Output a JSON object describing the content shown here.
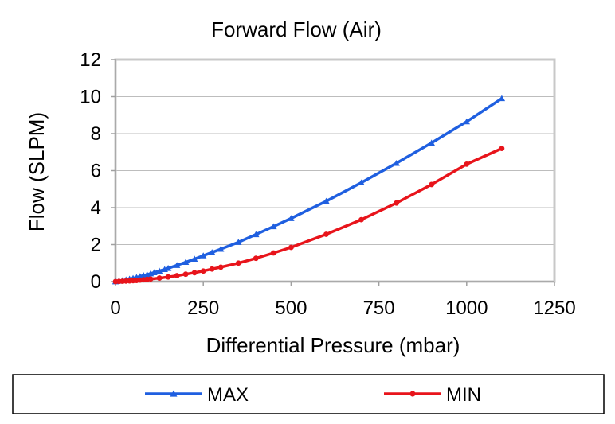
{
  "chart_data": {
    "type": "line",
    "title": "Forward Flow (Air)",
    "xlabel": "Differential Pressure (mbar)",
    "ylabel": "Flow (SLPM)",
    "xlim": [
      0,
      1250
    ],
    "ylim": [
      0,
      12
    ],
    "xticks": [
      0,
      250,
      500,
      750,
      1000,
      1250
    ],
    "yticks": [
      0,
      2,
      4,
      6,
      8,
      10,
      12
    ],
    "grid": true,
    "legend_position": "bottom",
    "series": [
      {
        "name": "MAX",
        "color": "#1F5FE0",
        "marker": "triangle",
        "points": [
          [
            0,
            0.0
          ],
          [
            10,
            0.03
          ],
          [
            20,
            0.06
          ],
          [
            30,
            0.1
          ],
          [
            40,
            0.14
          ],
          [
            50,
            0.18
          ],
          [
            60,
            0.23
          ],
          [
            70,
            0.28
          ],
          [
            80,
            0.33
          ],
          [
            90,
            0.38
          ],
          [
            100,
            0.43
          ],
          [
            110,
            0.49
          ],
          [
            125,
            0.57
          ],
          [
            140,
            0.66
          ],
          [
            150,
            0.72
          ],
          [
            175,
            0.88
          ],
          [
            200,
            1.05
          ],
          [
            225,
            1.22
          ],
          [
            250,
            1.4
          ],
          [
            275,
            1.58
          ],
          [
            300,
            1.76
          ],
          [
            350,
            2.13
          ],
          [
            400,
            2.55
          ],
          [
            450,
            2.98
          ],
          [
            500,
            3.42
          ],
          [
            600,
            4.35
          ],
          [
            700,
            5.35
          ],
          [
            800,
            6.4
          ],
          [
            900,
            7.5
          ],
          [
            1000,
            8.65
          ],
          [
            1100,
            9.9
          ]
        ]
      },
      {
        "name": "MIN",
        "color": "#E8141B",
        "marker": "circle",
        "points": [
          [
            0,
            0.0
          ],
          [
            10,
            0.01
          ],
          [
            20,
            0.02
          ],
          [
            30,
            0.03
          ],
          [
            40,
            0.04
          ],
          [
            50,
            0.05
          ],
          [
            60,
            0.06
          ],
          [
            70,
            0.08
          ],
          [
            80,
            0.1
          ],
          [
            90,
            0.12
          ],
          [
            100,
            0.14
          ],
          [
            125,
            0.19
          ],
          [
            150,
            0.25
          ],
          [
            175,
            0.32
          ],
          [
            200,
            0.4
          ],
          [
            225,
            0.48
          ],
          [
            250,
            0.57
          ],
          [
            275,
            0.68
          ],
          [
            300,
            0.78
          ],
          [
            350,
            1.0
          ],
          [
            400,
            1.26
          ],
          [
            450,
            1.55
          ],
          [
            500,
            1.85
          ],
          [
            600,
            2.56
          ],
          [
            700,
            3.35
          ],
          [
            800,
            4.25
          ],
          [
            900,
            5.25
          ],
          [
            1000,
            6.35
          ],
          [
            1100,
            7.2
          ]
        ]
      }
    ]
  }
}
